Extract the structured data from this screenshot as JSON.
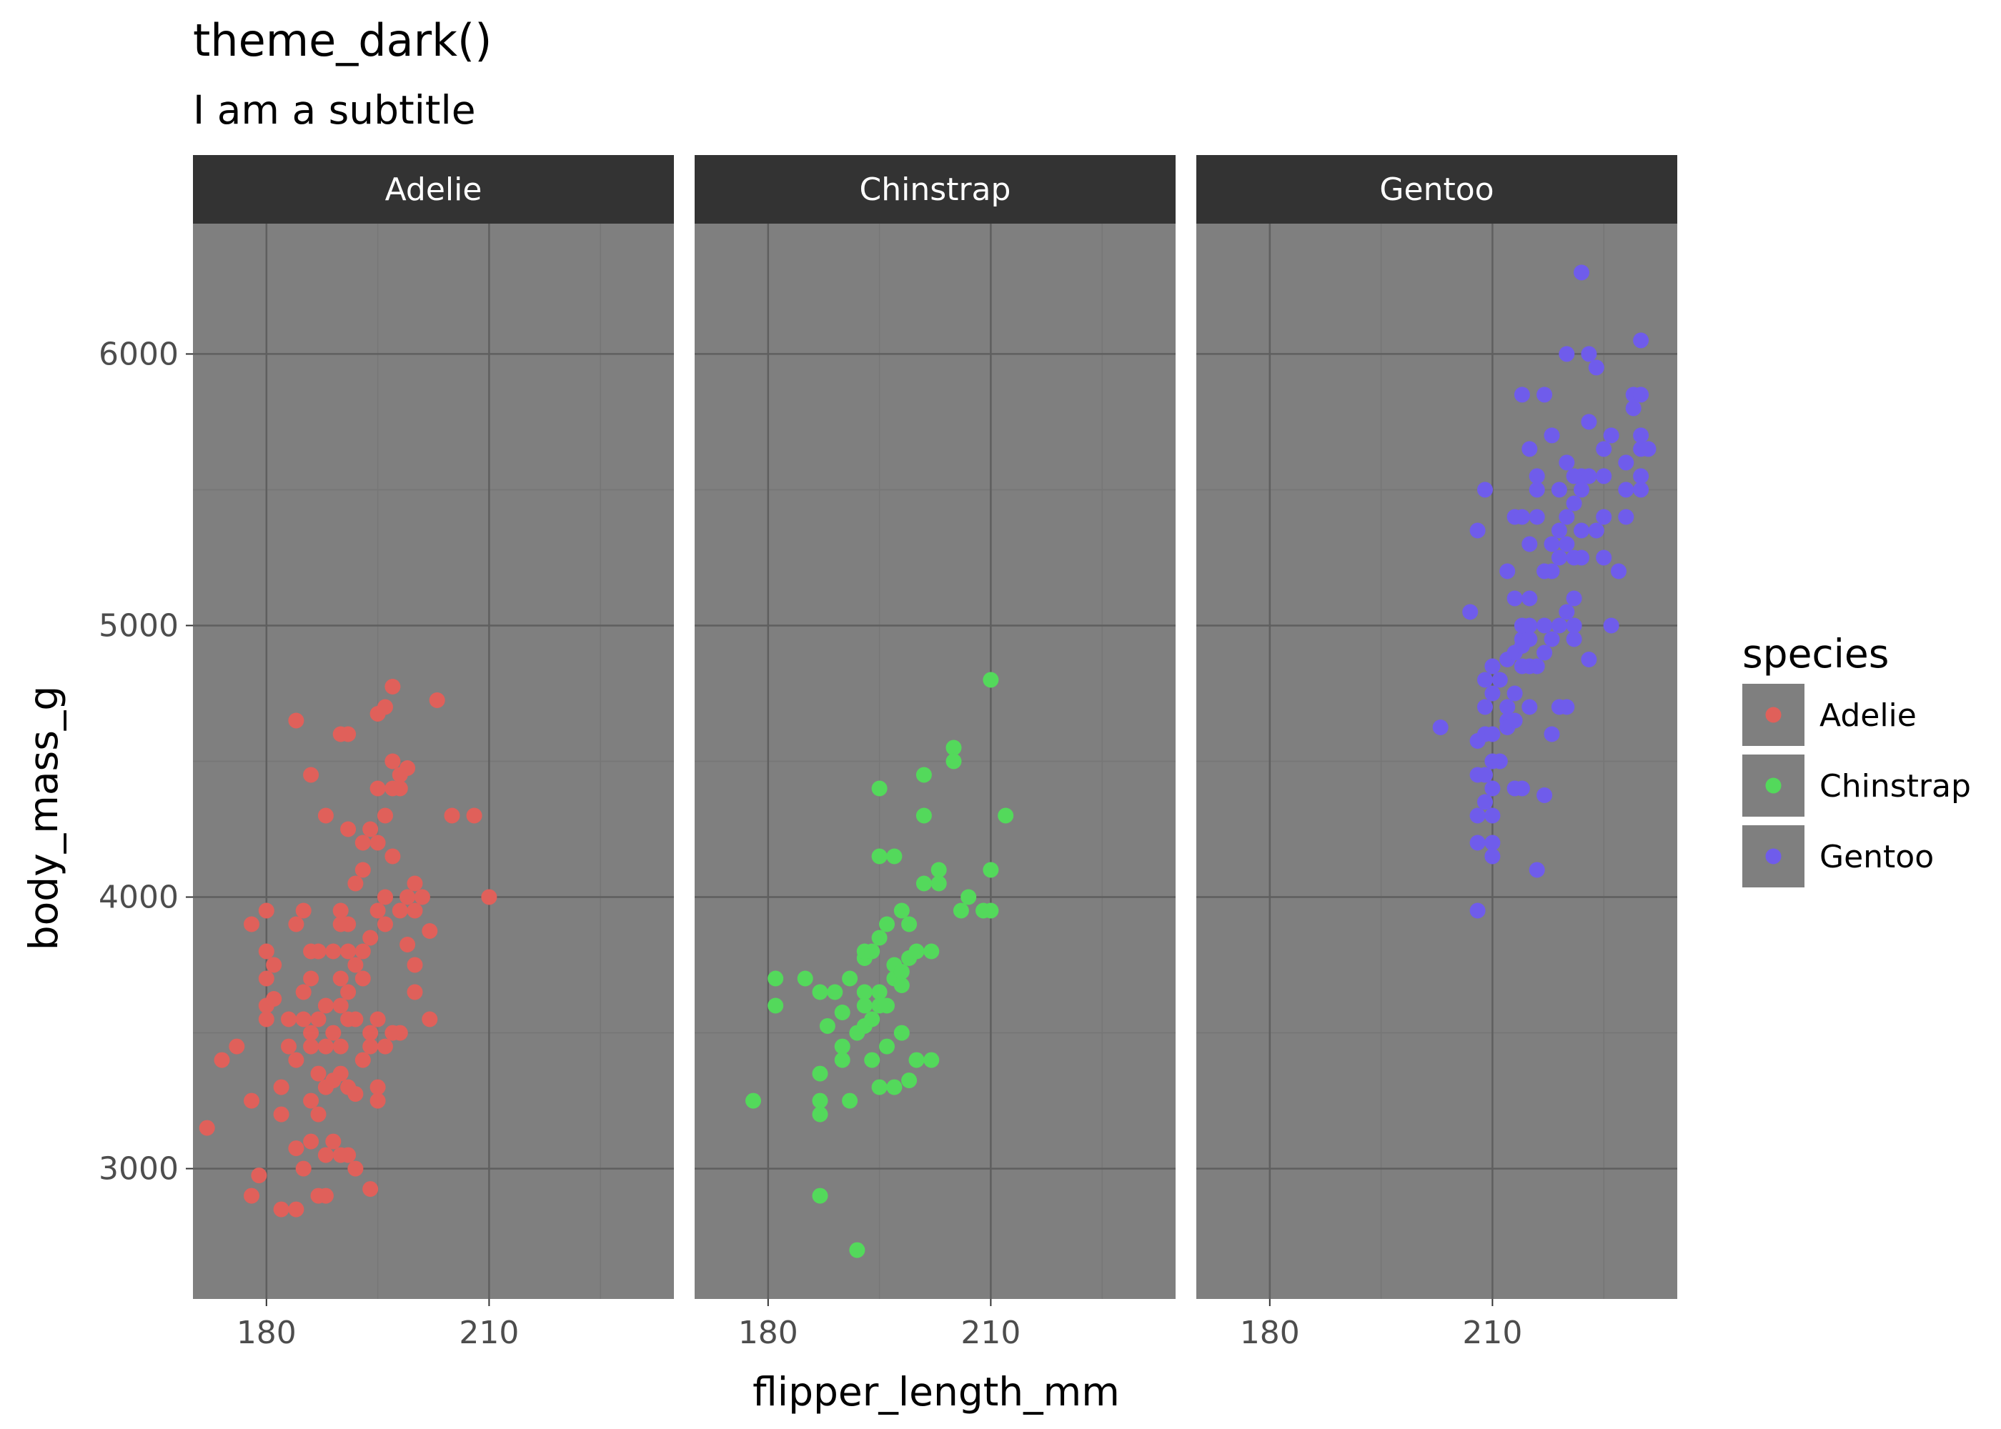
{
  "chart_data": {
    "type": "scatter",
    "title": "theme_dark()",
    "subtitle": "I am a subtitle",
    "xlabel": "flipper_length_mm",
    "ylabel": "body_mass_g",
    "xlim": [
      170.1,
      234.9
    ],
    "ylim": [
      2520,
      6480
    ],
    "x_ticks": [
      180,
      210
    ],
    "x_tick_labels": [
      "180",
      "210"
    ],
    "y_ticks": [
      3000,
      4000,
      5000,
      6000
    ],
    "y_tick_labels": [
      "3000",
      "4000",
      "5000",
      "6000"
    ],
    "grid": true,
    "legend": {
      "title": "species",
      "position": "right",
      "entries": [
        {
          "label": "Adelie",
          "color": "#E0605A"
        },
        {
          "label": "Chinstrap",
          "color": "#53D95B"
        },
        {
          "label": "Gentoo",
          "color": "#6F5CEB"
        }
      ]
    },
    "panel_background": "#7f7f7f",
    "strip_background": "#333333",
    "facets": [
      {
        "name": "Adelie",
        "color": "#E0605A",
        "points": [
          [
            172,
            3150
          ],
          [
            174,
            3400
          ],
          [
            176,
            3450
          ],
          [
            178,
            3250
          ],
          [
            178,
            3900
          ],
          [
            178,
            2900
          ],
          [
            179,
            2975
          ],
          [
            180,
            3550
          ],
          [
            180,
            3600
          ],
          [
            180,
            3700
          ],
          [
            180,
            3950
          ],
          [
            180,
            3800
          ],
          [
            181,
            3625
          ],
          [
            181,
            3750
          ],
          [
            182,
            3300
          ],
          [
            182,
            2850
          ],
          [
            182,
            3200
          ],
          [
            183,
            3450
          ],
          [
            183,
            3550
          ],
          [
            184,
            3075
          ],
          [
            184,
            3400
          ],
          [
            184,
            3900
          ],
          [
            184,
            2850
          ],
          [
            184,
            4650
          ],
          [
            185,
            3650
          ],
          [
            185,
            3550
          ],
          [
            185,
            3000
          ],
          [
            185,
            3950
          ],
          [
            186,
            3250
          ],
          [
            186,
            3450
          ],
          [
            186,
            3500
          ],
          [
            186,
            3700
          ],
          [
            186,
            3800
          ],
          [
            186,
            3100
          ],
          [
            186,
            4450
          ],
          [
            187,
            3350
          ],
          [
            187,
            3550
          ],
          [
            187,
            3200
          ],
          [
            187,
            3800
          ],
          [
            187,
            2900
          ],
          [
            188,
            3300
          ],
          [
            188,
            3600
          ],
          [
            188,
            3450
          ],
          [
            188,
            3050
          ],
          [
            188,
            4300
          ],
          [
            188,
            2900
          ],
          [
            189,
            3500
          ],
          [
            189,
            3800
          ],
          [
            189,
            3100
          ],
          [
            189,
            3325
          ],
          [
            190,
            3350
          ],
          [
            190,
            3950
          ],
          [
            190,
            3700
          ],
          [
            190,
            3450
          ],
          [
            190,
            3050
          ],
          [
            190,
            4600
          ],
          [
            190,
            3600
          ],
          [
            190,
            3900
          ],
          [
            191,
            3550
          ],
          [
            191,
            3800
          ],
          [
            191,
            3300
          ],
          [
            191,
            4250
          ],
          [
            191,
            3050
          ],
          [
            191,
            3900
          ],
          [
            191,
            4600
          ],
          [
            191,
            3650
          ],
          [
            192,
            3750
          ],
          [
            192,
            3550
          ],
          [
            192,
            3275
          ],
          [
            192,
            4050
          ],
          [
            192,
            3000
          ],
          [
            193,
            3400
          ],
          [
            193,
            3800
          ],
          [
            193,
            4200
          ],
          [
            193,
            3700
          ],
          [
            193,
            4100
          ],
          [
            194,
            3500
          ],
          [
            194,
            4250
          ],
          [
            194,
            3450
          ],
          [
            194,
            2925
          ],
          [
            194,
            3850
          ],
          [
            195,
            3550
          ],
          [
            195,
            4200
          ],
          [
            195,
            4400
          ],
          [
            195,
            3300
          ],
          [
            195,
            4675
          ],
          [
            195,
            3250
          ],
          [
            195,
            3950
          ],
          [
            196,
            3450
          ],
          [
            196,
            4300
          ],
          [
            196,
            4000
          ],
          [
            196,
            3900
          ],
          [
            196,
            4700
          ],
          [
            197,
            3500
          ],
          [
            197,
            4150
          ],
          [
            197,
            4500
          ],
          [
            197,
            4775
          ],
          [
            197,
            4400
          ],
          [
            198,
            3500
          ],
          [
            198,
            4400
          ],
          [
            198,
            4450
          ],
          [
            198,
            3950
          ],
          [
            199,
            4000
          ],
          [
            199,
            4475
          ],
          [
            199,
            3825
          ],
          [
            200,
            3750
          ],
          [
            200,
            4050
          ],
          [
            200,
            3650
          ],
          [
            200,
            3950
          ],
          [
            201,
            4000
          ],
          [
            202,
            3875
          ],
          [
            202,
            3550
          ],
          [
            203,
            4725
          ],
          [
            205,
            4300
          ],
          [
            208,
            4300
          ],
          [
            210,
            4000
          ]
        ]
      },
      {
        "name": "Chinstrap",
        "color": "#53D95B",
        "points": [
          [
            178,
            3250
          ],
          [
            181,
            3700
          ],
          [
            181,
            3600
          ],
          [
            185,
            3700
          ],
          [
            187,
            3650
          ],
          [
            187,
            3350
          ],
          [
            187,
            3250
          ],
          [
            187,
            3200
          ],
          [
            187,
            2900
          ],
          [
            188,
            3525
          ],
          [
            189,
            3650
          ],
          [
            190,
            3575
          ],
          [
            190,
            3450
          ],
          [
            190,
            3400
          ],
          [
            191,
            3700
          ],
          [
            191,
            3250
          ],
          [
            192,
            3500
          ],
          [
            192,
            2700
          ],
          [
            193,
            3775
          ],
          [
            193,
            3650
          ],
          [
            193,
            3800
          ],
          [
            193,
            3600
          ],
          [
            193,
            3525
          ],
          [
            194,
            3400
          ],
          [
            194,
            3550
          ],
          [
            194,
            3800
          ],
          [
            195,
            3600
          ],
          [
            195,
            3650
          ],
          [
            195,
            3850
          ],
          [
            195,
            3300
          ],
          [
            195,
            4150
          ],
          [
            195,
            4400
          ],
          [
            196,
            3900
          ],
          [
            196,
            3600
          ],
          [
            196,
            3450
          ],
          [
            197,
            3700
          ],
          [
            197,
            3750
          ],
          [
            197,
            3300
          ],
          [
            197,
            4150
          ],
          [
            198,
            3675
          ],
          [
            198,
            3725
          ],
          [
            198,
            3950
          ],
          [
            198,
            3500
          ],
          [
            199,
            3900
          ],
          [
            199,
            3775
          ],
          [
            199,
            3325
          ],
          [
            200,
            3800
          ],
          [
            200,
            3400
          ],
          [
            201,
            4050
          ],
          [
            201,
            4450
          ],
          [
            201,
            4300
          ],
          [
            202,
            3800
          ],
          [
            202,
            3400
          ],
          [
            203,
            4100
          ],
          [
            203,
            4050
          ],
          [
            205,
            4550
          ],
          [
            205,
            4500
          ],
          [
            206,
            3950
          ],
          [
            207,
            4000
          ],
          [
            209,
            3950
          ],
          [
            210,
            4800
          ],
          [
            210,
            4100
          ],
          [
            210,
            3950
          ],
          [
            212,
            4300
          ]
        ]
      },
      {
        "name": "Gentoo",
        "color": "#6F5CEB",
        "points": [
          [
            203,
            4625
          ],
          [
            207,
            5050
          ],
          [
            208,
            5350
          ],
          [
            208,
            4200
          ],
          [
            208,
            4450
          ],
          [
            208,
            4300
          ],
          [
            208,
            4575
          ],
          [
            208,
            3950
          ],
          [
            209,
            5500
          ],
          [
            209,
            4800
          ],
          [
            209,
            4350
          ],
          [
            209,
            4700
          ],
          [
            209,
            4450
          ],
          [
            209,
            4600
          ],
          [
            210,
            4750
          ],
          [
            210,
            4200
          ],
          [
            210,
            4400
          ],
          [
            210,
            4300
          ],
          [
            210,
            4850
          ],
          [
            210,
            4500
          ],
          [
            210,
            4600
          ],
          [
            210,
            4150
          ],
          [
            211,
            4800
          ],
          [
            211,
            4500
          ],
          [
            212,
            4875
          ],
          [
            212,
            4650
          ],
          [
            212,
            5200
          ],
          [
            212,
            4625
          ],
          [
            212,
            4700
          ],
          [
            213,
            4900
          ],
          [
            213,
            5400
          ],
          [
            213,
            4750
          ],
          [
            213,
            5100
          ],
          [
            213,
            4650
          ],
          [
            213,
            4400
          ],
          [
            214,
            4850
          ],
          [
            214,
            5400
          ],
          [
            214,
            4950
          ],
          [
            214,
            4925
          ],
          [
            214,
            5000
          ],
          [
            214,
            4400
          ],
          [
            214,
            5850
          ],
          [
            215,
            5000
          ],
          [
            215,
            4850
          ],
          [
            215,
            4700
          ],
          [
            215,
            5300
          ],
          [
            215,
            5650
          ],
          [
            215,
            4950
          ],
          [
            215,
            5100
          ],
          [
            216,
            5400
          ],
          [
            216,
            5550
          ],
          [
            216,
            4850
          ],
          [
            216,
            4100
          ],
          [
            216,
            5500
          ],
          [
            217,
            4900
          ],
          [
            217,
            5000
          ],
          [
            217,
            5200
          ],
          [
            217,
            4375
          ],
          [
            217,
            5850
          ],
          [
            218,
            5700
          ],
          [
            218,
            5300
          ],
          [
            218,
            4600
          ],
          [
            218,
            4950
          ],
          [
            218,
            5200
          ],
          [
            219,
            5000
          ],
          [
            219,
            5250
          ],
          [
            219,
            4700
          ],
          [
            219,
            5350
          ],
          [
            219,
            5500
          ],
          [
            220,
            5400
          ],
          [
            220,
            5300
          ],
          [
            220,
            5050
          ],
          [
            220,
            4700
          ],
          [
            220,
            5600
          ],
          [
            220,
            6000
          ],
          [
            221,
            5100
          ],
          [
            221,
            5450
          ],
          [
            221,
            5250
          ],
          [
            221,
            4950
          ],
          [
            221,
            5550
          ],
          [
            221,
            5000
          ],
          [
            222,
            5550
          ],
          [
            222,
            5250
          ],
          [
            222,
            5350
          ],
          [
            222,
            6300
          ],
          [
            222,
            5500
          ],
          [
            223,
            5550
          ],
          [
            223,
            5750
          ],
          [
            223,
            6000
          ],
          [
            223,
            4875
          ],
          [
            224,
            5350
          ],
          [
            224,
            5950
          ],
          [
            225,
            5550
          ],
          [
            225,
            5250
          ],
          [
            225,
            5650
          ],
          [
            225,
            5400
          ],
          [
            226,
            5700
          ],
          [
            226,
            5000
          ],
          [
            227,
            5200
          ],
          [
            228,
            5600
          ],
          [
            228,
            5500
          ],
          [
            228,
            5400
          ],
          [
            229,
            5800
          ],
          [
            229,
            5850
          ],
          [
            230,
            5650
          ],
          [
            230,
            5700
          ],
          [
            230,
            5500
          ],
          [
            230,
            6050
          ],
          [
            230,
            5850
          ],
          [
            230,
            5550
          ],
          [
            231,
            5650
          ]
        ]
      }
    ]
  }
}
